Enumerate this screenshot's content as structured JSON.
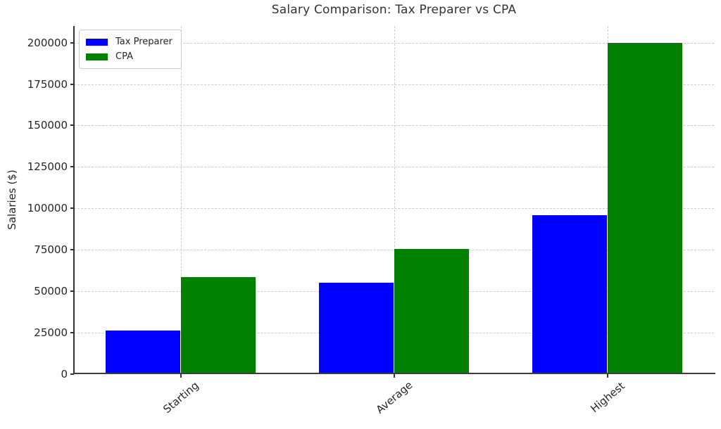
{
  "chart_data": {
    "type": "bar",
    "title": "Salary Comparison: Tax Preparer vs CPA",
    "ylabel": "Salaries ($)",
    "xlabel": "",
    "categories": [
      "Starting",
      "Average",
      "Highest"
    ],
    "series": [
      {
        "name": "Tax Preparer",
        "color": "#0000FF",
        "values": [
          26500,
          55000,
          96000
        ]
      },
      {
        "name": "CPA",
        "color": "#008000",
        "values": [
          58500,
          75700,
          200000
        ]
      }
    ],
    "yticks": [
      0,
      25000,
      50000,
      75000,
      100000,
      125000,
      150000,
      175000,
      200000
    ],
    "ylim": [
      0,
      210000
    ],
    "grid": "dashed-both-axes",
    "legend_position": "upper-left",
    "bar_width_fraction": 0.35,
    "colors": {
      "grid": "#cccccc",
      "spine": "#333333",
      "tick_text": "#262626",
      "title_text": "#333333",
      "legend_border": "#cccccc",
      "background": "#ffffff"
    }
  }
}
